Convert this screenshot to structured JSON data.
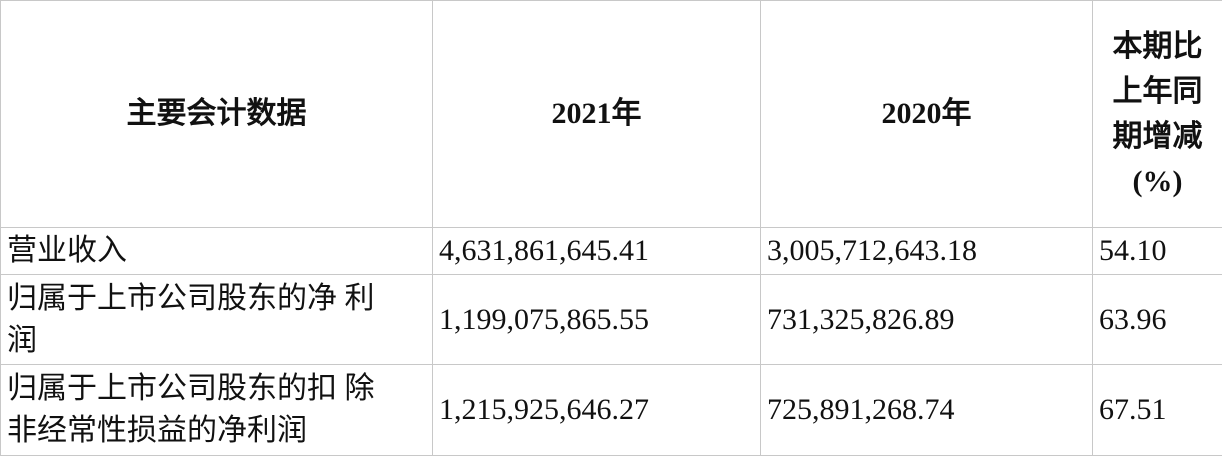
{
  "table": {
    "header": [
      "主要会计数据",
      "2021年",
      "2020年",
      [
        "本期比",
        "上年同",
        "期增减",
        "(%)"
      ]
    ],
    "rows": [
      [
        [
          "营业收入"
        ],
        "4,631,861,645.41",
        "3,005,712,643.18",
        "54.10"
      ],
      [
        [
          "归属于上市公司股东的净 利",
          "润"
        ],
        "1,199,075,865.55",
        "731,325,826.89",
        "63.96"
      ],
      [
        [
          "归属于上市公司股东的扣 除",
          "非经常性损益的净利润"
        ],
        "1,215,925,646.27",
        "725,891,268.74",
        "67.51"
      ]
    ]
  }
}
